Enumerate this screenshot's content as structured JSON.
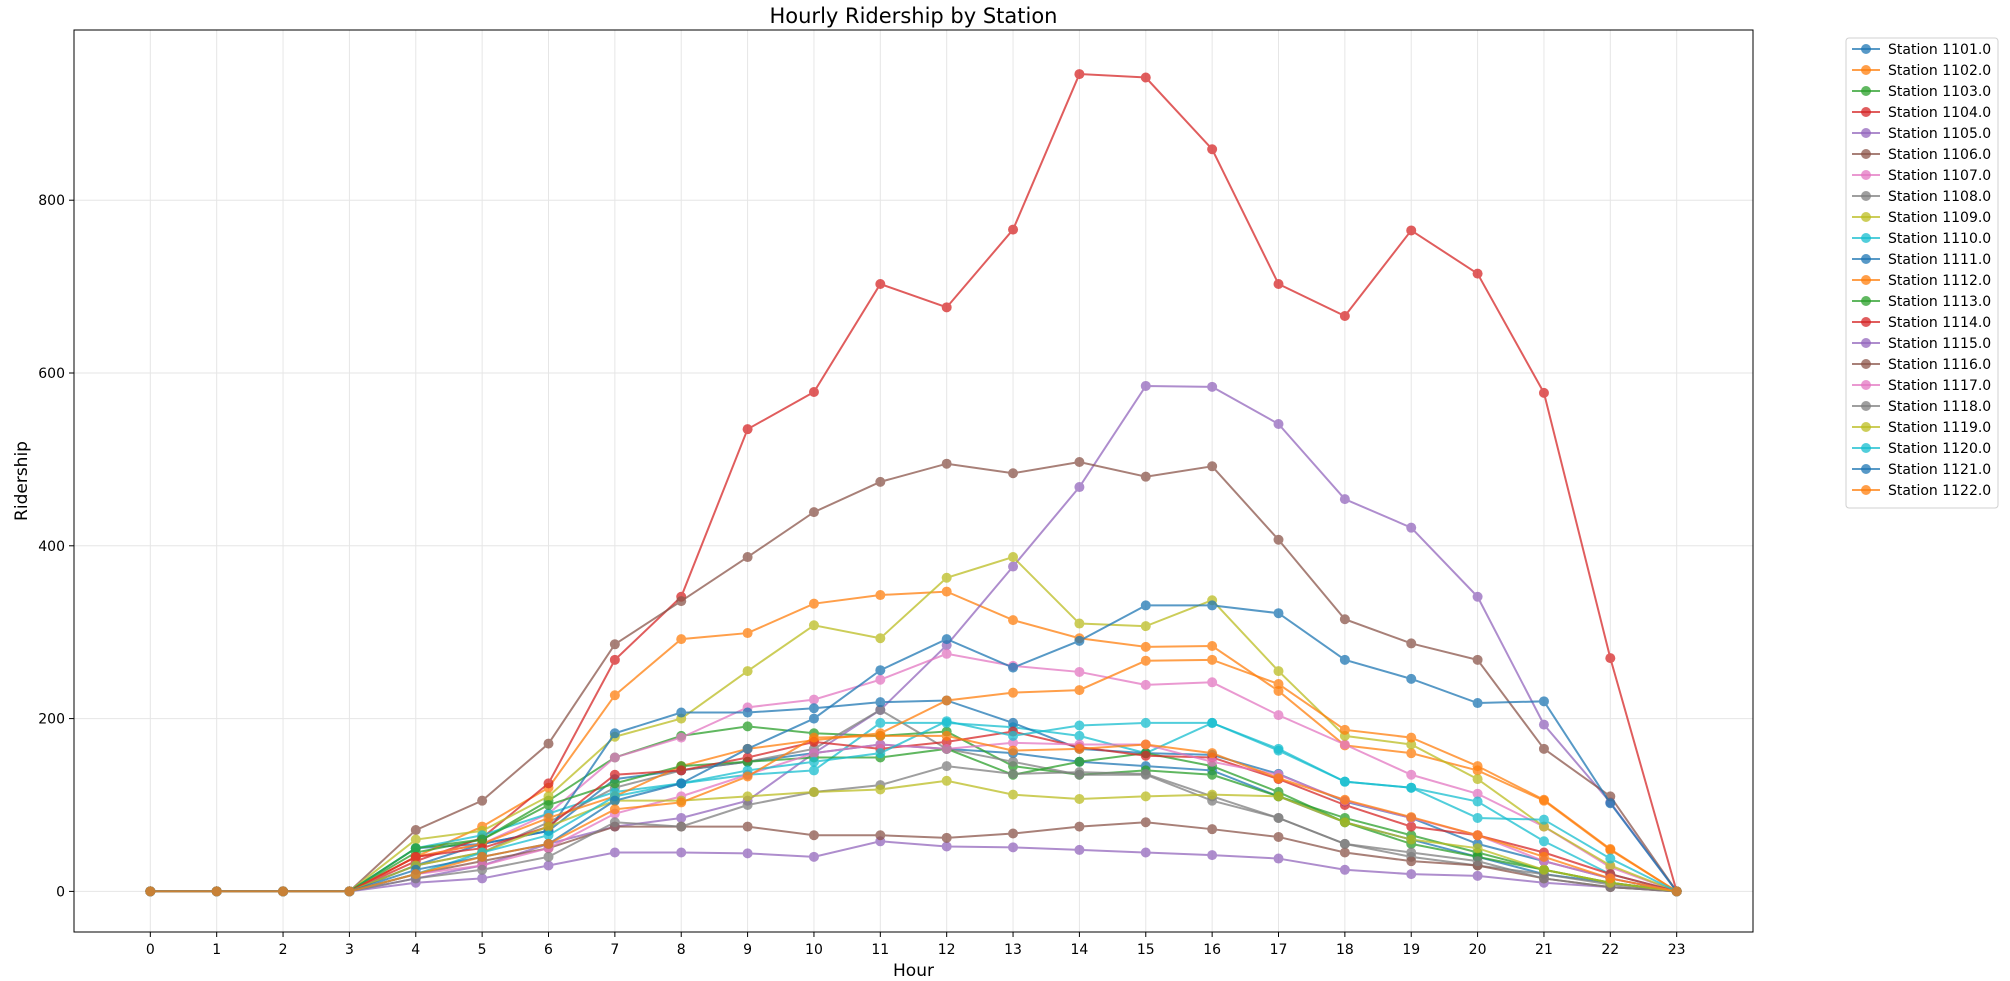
{
  "chart_data": {
    "type": "line",
    "title": "Hourly Ridership by Station",
    "xlabel": "Hour",
    "ylabel": "Ridership",
    "x": [
      0,
      1,
      2,
      3,
      4,
      5,
      6,
      7,
      8,
      9,
      10,
      11,
      12,
      13,
      14,
      15,
      16,
      17,
      18,
      19,
      20,
      21,
      22,
      23
    ],
    "xlim": [
      -1.15,
      24.15
    ],
    "ylim": [
      -47,
      997
    ],
    "yticks": [
      0,
      200,
      400,
      600,
      800
    ],
    "grid": true,
    "legend_position": "outside-top-right",
    "series": [
      {
        "name": "Station 1101.0",
        "color": "#1f77b4",
        "values": [
          0,
          0,
          0,
          0,
          50,
          55,
          70,
          130,
          140,
          150,
          160,
          170,
          165,
          160,
          150,
          145,
          140,
          110,
          80,
          60,
          40,
          20,
          10,
          0
        ]
      },
      {
        "name": "Station 1102.0",
        "color": "#ff7f0e",
        "values": [
          0,
          0,
          0,
          0,
          40,
          75,
          120,
          227,
          292,
          299,
          333,
          343,
          347,
          314,
          293,
          283,
          284,
          232,
          169,
          160,
          140,
          105,
          48,
          0
        ]
      },
      {
        "name": "Station 1103.0",
        "color": "#2ca02c",
        "values": [
          0,
          0,
          0,
          0,
          45,
          60,
          105,
          155,
          180,
          191,
          183,
          180,
          185,
          145,
          135,
          140,
          135,
          110,
          85,
          65,
          45,
          25,
          10,
          0
        ]
      },
      {
        "name": "Station 1104.0",
        "color": "#d62728",
        "values": [
          0,
          0,
          0,
          0,
          35,
          62,
          125,
          268,
          341,
          535,
          578,
          703,
          676,
          766,
          946,
          942,
          859,
          703,
          666,
          765,
          715,
          577,
          270,
          0
        ]
      },
      {
        "name": "Station 1105.0",
        "color": "#9467bd",
        "values": [
          0,
          0,
          0,
          0,
          15,
          30,
          55,
          75,
          85,
          105,
          160,
          210,
          285,
          376,
          468,
          585,
          584,
          541,
          454,
          421,
          341,
          193,
          103,
          0
        ]
      },
      {
        "name": "Station 1106.0",
        "color": "#8c564b",
        "values": [
          0,
          0,
          0,
          0,
          71,
          105,
          171,
          286,
          336,
          387,
          439,
          474,
          495,
          484,
          497,
          480,
          492,
          407,
          315,
          287,
          268,
          165,
          110,
          0
        ]
      },
      {
        "name": "Station 1107.0",
        "color": "#e377c2",
        "values": [
          0,
          0,
          0,
          0,
          40,
          55,
          90,
          155,
          178,
          213,
          222,
          245,
          275,
          261,
          254,
          239,
          242,
          204,
          170,
          135,
          113,
          75,
          28,
          0
        ]
      },
      {
        "name": "Station 1108.0",
        "color": "#7f7f7f",
        "values": [
          0,
          0,
          0,
          0,
          30,
          45,
          80,
          120,
          140,
          150,
          165,
          210,
          165,
          150,
          135,
          135,
          105,
          85,
          55,
          40,
          30,
          20,
          8,
          0
        ]
      },
      {
        "name": "Station 1109.0",
        "color": "#bcbd22",
        "values": [
          0,
          0,
          0,
          0,
          60,
          70,
          110,
          179,
          200,
          255,
          308,
          293,
          363,
          387,
          310,
          307,
          337,
          255,
          180,
          170,
          130,
          75,
          30,
          0
        ]
      },
      {
        "name": "Station 1110.0",
        "color": "#17becf",
        "values": [
          0,
          0,
          0,
          0,
          50,
          65,
          90,
          115,
          125,
          135,
          140,
          195,
          195,
          190,
          180,
          160,
          195,
          165,
          127,
          120,
          104,
          58,
          20,
          0
        ]
      },
      {
        "name": "Station 1111.0",
        "color": "#1f77b4",
        "values": [
          0,
          0,
          0,
          0,
          30,
          55,
          70,
          183,
          207,
          207,
          212,
          219,
          221,
          195,
          165,
          160,
          158,
          136,
          104,
          85,
          55,
          35,
          15,
          0
        ]
      },
      {
        "name": "Station 1112.0",
        "color": "#ff7f0e",
        "values": [
          0,
          0,
          0,
          0,
          40,
          55,
          85,
          110,
          145,
          165,
          175,
          183,
          221,
          230,
          233,
          267,
          268,
          240,
          187,
          178,
          145,
          106,
          49,
          0
        ]
      },
      {
        "name": "Station 1113.0",
        "color": "#2ca02c",
        "values": [
          0,
          0,
          0,
          0,
          50,
          60,
          100,
          125,
          145,
          150,
          155,
          155,
          165,
          135,
          150,
          160,
          145,
          115,
          80,
          55,
          40,
          25,
          10,
          0
        ]
      },
      {
        "name": "Station 1114.0",
        "color": "#d62728",
        "values": [
          0,
          0,
          0,
          0,
          40,
          50,
          75,
          135,
          140,
          155,
          173,
          165,
          173,
          185,
          167,
          157,
          155,
          130,
          100,
          75,
          65,
          45,
          20,
          0
        ]
      },
      {
        "name": "Station 1115.0",
        "color": "#9467bd",
        "values": [
          0,
          0,
          0,
          0,
          10,
          15,
          30,
          45,
          45,
          44,
          40,
          58,
          52,
          51,
          48,
          45,
          42,
          38,
          25,
          20,
          18,
          10,
          5,
          0
        ]
      },
      {
        "name": "Station 1116.0",
        "color": "#8c564b",
        "values": [
          0,
          0,
          0,
          0,
          20,
          35,
          50,
          75,
          75,
          75,
          65,
          65,
          62,
          67,
          75,
          80,
          72,
          63,
          45,
          35,
          30,
          15,
          5,
          0
        ]
      },
      {
        "name": "Station 1117.0",
        "color": "#e377c2",
        "values": [
          0,
          0,
          0,
          0,
          20,
          30,
          50,
          90,
          110,
          135,
          160,
          170,
          165,
          172,
          170,
          170,
          150,
          135,
          105,
          85,
          65,
          35,
          15,
          0
        ]
      },
      {
        "name": "Station 1118.0",
        "color": "#7f7f7f",
        "values": [
          0,
          0,
          0,
          0,
          15,
          25,
          40,
          80,
          75,
          100,
          115,
          123,
          145,
          136,
          138,
          136,
          110,
          85,
          55,
          45,
          35,
          15,
          5,
          0
        ]
      },
      {
        "name": "Station 1119.0",
        "color": "#bcbd22",
        "values": [
          0,
          0,
          0,
          0,
          30,
          45,
          75,
          105,
          105,
          110,
          115,
          118,
          128,
          112,
          107,
          110,
          112,
          110,
          80,
          60,
          50,
          25,
          10,
          0
        ]
      },
      {
        "name": "Station 1120.0",
        "color": "#17becf",
        "values": [
          0,
          0,
          0,
          0,
          20,
          45,
          65,
          110,
          125,
          140,
          150,
          160,
          197,
          180,
          192,
          195,
          195,
          163,
          127,
          120,
          85,
          83,
          38,
          0
        ]
      },
      {
        "name": "Station 1121.0",
        "color": "#1f77b4",
        "values": [
          0,
          0,
          0,
          0,
          25,
          40,
          55,
          105,
          125,
          165,
          200,
          256,
          292,
          259,
          290,
          331,
          331,
          322,
          268,
          246,
          218,
          220,
          102,
          0
        ]
      },
      {
        "name": "Station 1122.0",
        "color": "#ff7f0e",
        "values": [
          0,
          0,
          0,
          0,
          20,
          40,
          55,
          95,
          103,
          133,
          178,
          180,
          180,
          163,
          165,
          170,
          160,
          131,
          106,
          86,
          65,
          40,
          15,
          0
        ]
      }
    ]
  }
}
